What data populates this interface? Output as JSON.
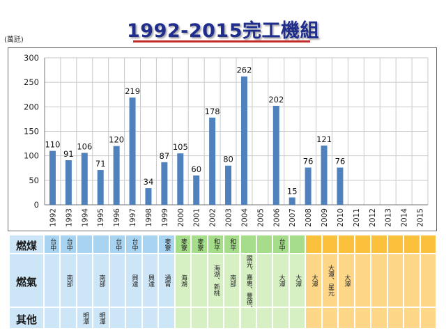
{
  "title": "1992-2015完工機組",
  "unit_label": "(萬瓩)",
  "chart_data": {
    "type": "bar",
    "title": "1992-2015完工機組",
    "ylabel": "(萬瓩)",
    "ylim": [
      0,
      300
    ],
    "yticks": [
      0,
      50,
      100,
      150,
      200,
      250,
      300
    ],
    "grid": true,
    "categories": [
      "1992",
      "1993",
      "1994",
      "1995",
      "1996",
      "1997",
      "1998",
      "1999",
      "2000",
      "2001",
      "2002",
      "2003",
      "2004",
      "2005",
      "2006",
      "2007",
      "2008",
      "2009",
      "2010",
      "2011",
      "2012",
      "2013",
      "2014",
      "2015"
    ],
    "values": [
      110,
      91,
      106,
      71,
      120,
      219,
      34,
      87,
      105,
      60,
      178,
      80,
      262,
      null,
      202,
      15,
      76,
      121,
      76,
      null,
      null,
      null,
      null,
      null
    ],
    "bar_color": "#4f81bd"
  },
  "table": {
    "rows": [
      {
        "label": "燃煤",
        "cells": [
          "台中",
          "台中",
          "",
          "",
          "台中",
          "台中",
          "",
          "麥寮",
          "麥寮",
          "麥寮",
          "和平",
          "和平",
          "",
          "",
          "台中",
          "",
          "",
          "",
          "",
          "",
          "",
          "",
          "",
          ""
        ]
      },
      {
        "label": "燃氣",
        "cells": [
          "",
          "南部",
          "",
          "南部",
          "",
          "興達",
          "興達",
          "通霄",
          "海湖",
          "",
          "海湖、新桃",
          "南部",
          "國光、嘉惠、豐德、星彰",
          "",
          "大潭",
          "大潭",
          "大潭",
          "大潭、星元",
          "大潭",
          "",
          "",
          "",
          "",
          ""
        ]
      },
      {
        "label": "其他",
        "cells": [
          "",
          "",
          "明潭",
          "明潭",
          "",
          "",
          "",
          "",
          "",
          "",
          "",
          "",
          "",
          "",
          "",
          "",
          "",
          "",
          "",
          "",
          "",
          "",
          "",
          ""
        ]
      }
    ],
    "column_colors": [
      "#cce5f7",
      "#cce5f7",
      "#cce5f7",
      "#cce5f7",
      "#cce5f7",
      "#cce5f7",
      "#cce5f7",
      "#cce5f7",
      "#d6f0c4",
      "#d6f0c4",
      "#d6f0c4",
      "#d6f0c4",
      "#d6f0c4",
      "#d6f0c4",
      "#d6f0c4",
      "#d6f0c4",
      "#fdd688",
      "#fdd688",
      "#fdd688",
      "#fdd688",
      "#fdd688",
      "#fdd688",
      "#fdd688",
      "#fdd688"
    ],
    "label_color": "#cce5f7",
    "coal_row_colors": [
      "#a8d4f2",
      "#a8d4f2",
      "#a8d4f2",
      "#a8d4f2",
      "#a8d4f2",
      "#a8d4f2",
      "#a8d4f2",
      "#a8d4f2",
      "#a6dd8a",
      "#a6dd8a",
      "#a6dd8a",
      "#a6dd8a",
      "#a6dd8a",
      "#a6dd8a",
      "#a6dd8a",
      "#a6dd8a",
      "#fbc13d",
      "#fbc13d",
      "#fbc13d",
      "#fbc13d",
      "#fbc13d",
      "#fbc13d",
      "#fbc13d",
      "#fbc13d"
    ]
  }
}
